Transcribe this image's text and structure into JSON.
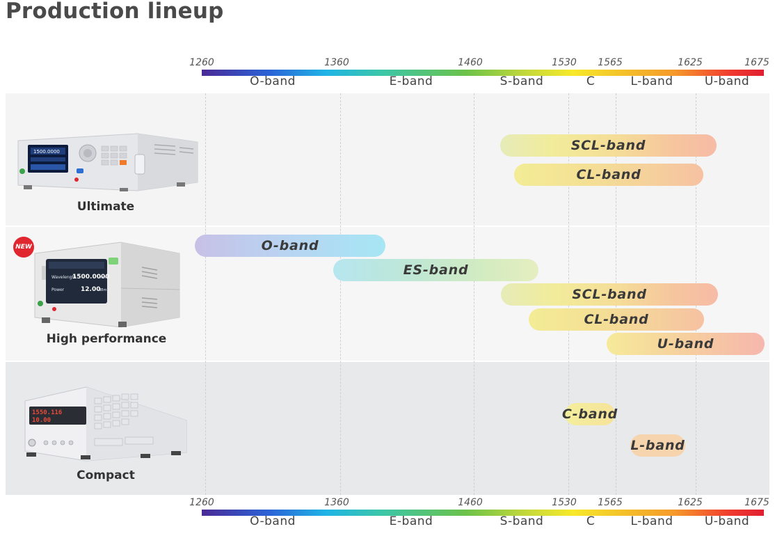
{
  "title": "Production lineup",
  "scale": {
    "ticks": [
      "1260",
      "1360",
      "1460",
      "1530",
      "1565",
      "1625",
      "1675"
    ],
    "bands": [
      "O-band",
      "E-band",
      "S-band",
      "C",
      "L-band",
      "U-band"
    ]
  },
  "products": [
    {
      "name": "Ultimate",
      "bands": [
        "SCL-band",
        "CL-band"
      ]
    },
    {
      "name": "High performance",
      "badge": "NEW",
      "bands": [
        "O-band",
        "ES-band",
        "SCL-band",
        "CL-band",
        "U-band"
      ]
    },
    {
      "name": "Compact",
      "bands": [
        "C-band",
        "L-band"
      ]
    }
  ],
  "device_screens": {
    "ultimate_readout": "1500.0000",
    "high_wavelength_label": "Wavelength",
    "high_wavelength_value": "1500.0000",
    "high_wavelength_unit": "nm",
    "high_power_label": "Power",
    "high_power_value": "12.00",
    "high_power_unit": "dBm",
    "compact_readout_1": "1550.116",
    "compact_readout_2": "10.00"
  },
  "colors": {
    "new_badge": "#e0272f",
    "row_ultimate_bg": "#f4f4f5",
    "row_high_bg": "#f6f6f6",
    "row_compact_bg": "#e8e9eb"
  }
}
